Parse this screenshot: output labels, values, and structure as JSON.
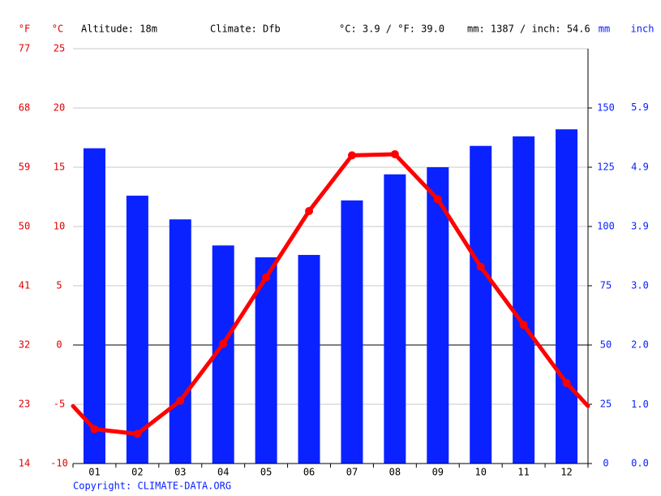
{
  "chart_data": {
    "type": "bar-line",
    "header": {
      "f_unit": "°F",
      "c_unit": "°C",
      "altitude": "Altitude: 18m",
      "climate": "Climate: Dfb",
      "temp_avg": "°C: 3.9 / °F: 39.0",
      "precip_total": "mm: 1387 / inch: 54.6",
      "mm_unit": "mm",
      "inch_unit": "inch"
    },
    "copyright": "Copyright: CLIMATE-DATA.ORG",
    "categories": [
      "01",
      "02",
      "03",
      "04",
      "05",
      "06",
      "07",
      "08",
      "09",
      "10",
      "11",
      "12"
    ],
    "precipitation": {
      "color": "#0a22ff",
      "axis": "y2",
      "values": [
        133,
        113,
        103,
        92,
        87,
        88,
        111,
        122,
        125,
        134,
        138,
        141
      ]
    },
    "temperature": {
      "color": "#ff0000",
      "values": [
        -7.1,
        -7.5,
        -4.7,
        0.1,
        5.7,
        11.3,
        16.0,
        16.1,
        12.3,
        6.6,
        1.7,
        -3.2
      ]
    },
    "ylim": [
      -10,
      25
    ],
    "yticks": [
      -10,
      -5,
      0,
      5,
      10,
      15,
      20,
      25
    ],
    "yflim": [
      14,
      77
    ],
    "yfticks": [
      14,
      23,
      32,
      41,
      50,
      59,
      68,
      77
    ],
    "y2lim": [
      0,
      175
    ],
    "y2ticks": [
      0,
      25,
      50,
      75,
      100,
      125,
      150
    ],
    "y3lim": [
      0,
      6.89
    ],
    "y3ticks": [
      {
        "value": 0,
        "label": "0.0"
      },
      {
        "value": 0.98,
        "label": "1.0"
      },
      {
        "value": 1.97,
        "label": "2.0"
      },
      {
        "value": 2.95,
        "label": "3.0"
      },
      {
        "value": 3.94,
        "label": "3.9"
      },
      {
        "value": 4.92,
        "label": "4.9"
      },
      {
        "value": 5.91,
        "label": "5.9"
      }
    ],
    "grid": true
  }
}
